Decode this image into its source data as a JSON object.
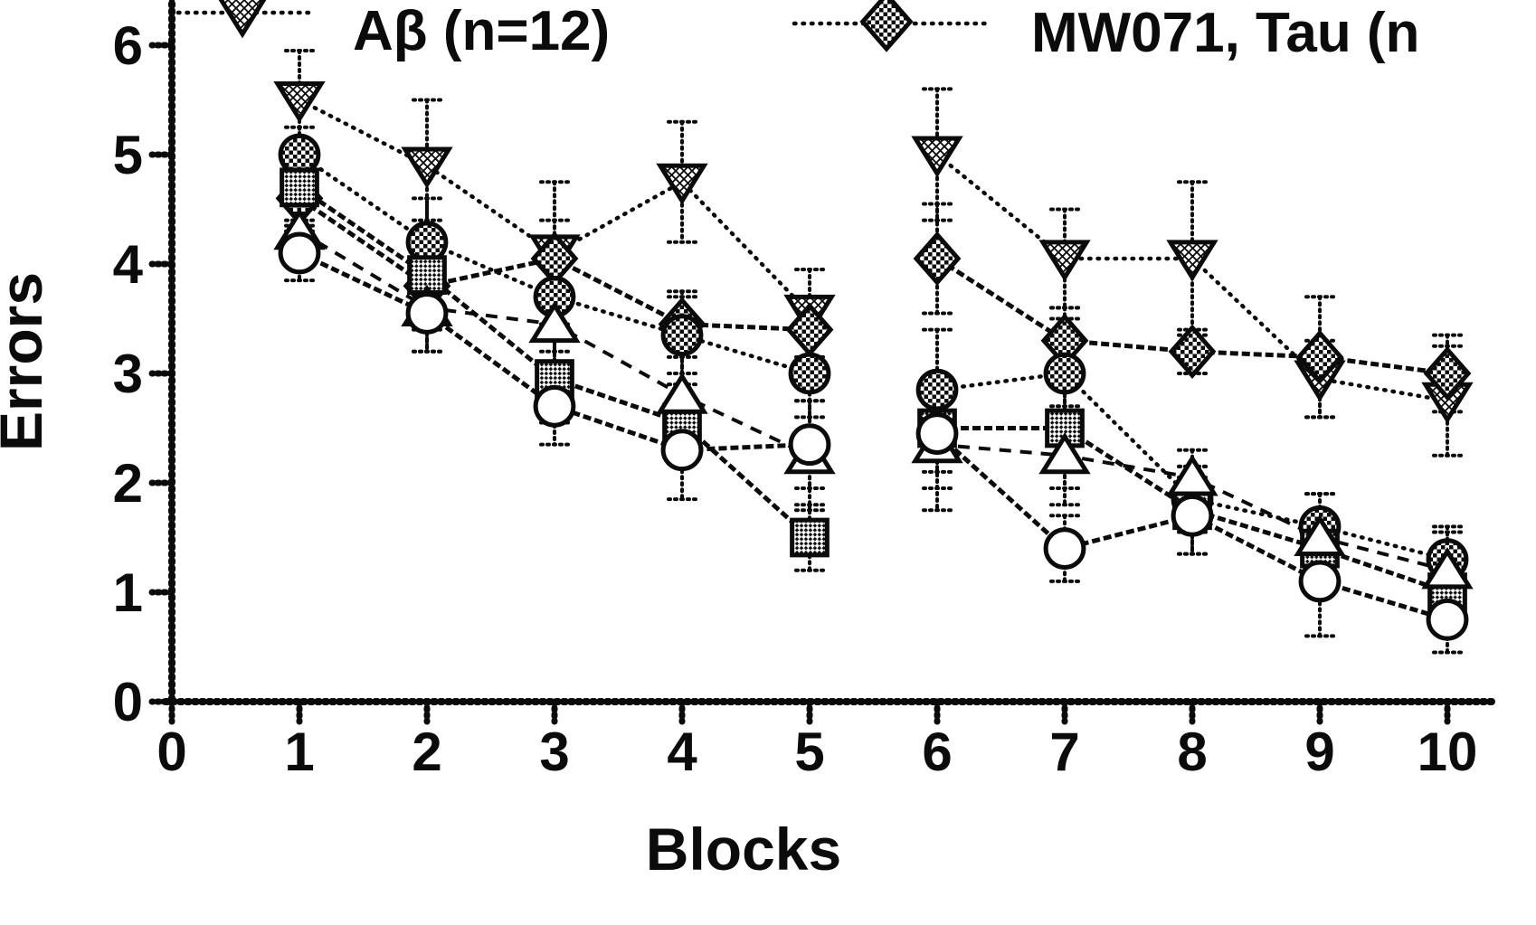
{
  "figure": {
    "background": "#ffffff",
    "ink": "#0b0b0b"
  },
  "legend": {
    "position": "top",
    "entries": [
      {
        "label": "Aβ (n=12)",
        "marker": "triangle-down",
        "fill": "crosshatch",
        "line": "dotted",
        "clipped": "top"
      },
      {
        "label": "MW071, Tau (n",
        "marker": "diamond",
        "fill": "checker",
        "line": "dotted",
        "clipped": "top-right"
      }
    ]
  },
  "chart_data": {
    "type": "line",
    "title": "",
    "xlabel": "Blocks",
    "ylabel": "Errors",
    "xlim": [
      0,
      10.3
    ],
    "ylim": [
      0,
      6.3
    ],
    "xticks": [
      0,
      1,
      2,
      3,
      4,
      5,
      6,
      7,
      8,
      9,
      10
    ],
    "yticks": [
      0,
      1,
      2,
      3,
      4,
      5,
      6
    ],
    "grid": false,
    "gap_between_blocks": [
      5,
      6
    ],
    "note": "Six groups, errors per training block; lines are broken between block 5 and block 6; error bars show s.e.m.",
    "series": [
      {
        "id": "abeta",
        "name": "Aβ (n=12)",
        "marker": "triangle-down",
        "fill": "crosshatch",
        "line": "dotted",
        "x": [
          1,
          2,
          3,
          4,
          5,
          6,
          7,
          8,
          9,
          10
        ],
        "y": [
          5.5,
          4.9,
          4.1,
          4.75,
          3.55,
          5.0,
          4.05,
          4.05,
          2.95,
          2.75
        ],
        "err": [
          0.45,
          0.6,
          0.65,
          0.55,
          0.4,
          0.6,
          0.45,
          0.7,
          0.35,
          0.5
        ]
      },
      {
        "id": "mw071-tau",
        "name": "MW071, Tau (n",
        "marker": "diamond",
        "fill": "checker",
        "line": "solid",
        "x": [
          1,
          2,
          3,
          4,
          5,
          6,
          7,
          8,
          9,
          10
        ],
        "y": [
          4.6,
          3.8,
          4.05,
          3.45,
          3.4,
          4.05,
          3.3,
          3.2,
          3.15,
          3.0
        ],
        "err": [
          0.3,
          0.3,
          0.35,
          0.3,
          0.3,
          0.5,
          0.3,
          0.2,
          0.55,
          0.35
        ]
      },
      {
        "id": "filled-circle",
        "name": "",
        "marker": "circle-filled",
        "fill": "checker",
        "line": "dotted",
        "x": [
          1,
          2,
          3,
          4,
          5,
          6,
          7,
          8,
          9,
          10
        ],
        "y": [
          5.0,
          4.2,
          3.7,
          3.35,
          3.0,
          2.85,
          3.0,
          1.85,
          1.6,
          1.3
        ],
        "err": [
          0.25,
          0.4,
          0.5,
          0.35,
          0.4,
          0.55,
          0.5,
          0.3,
          0.3,
          0.3
        ]
      },
      {
        "id": "hatched-square",
        "name": "",
        "marker": "square",
        "fill": "dots",
        "line": "solid",
        "x": [
          1,
          2,
          3,
          4,
          5,
          6,
          7,
          8,
          9,
          10
        ],
        "y": [
          4.7,
          3.9,
          2.95,
          2.55,
          1.5,
          2.5,
          2.5,
          1.75,
          1.4,
          1.0
        ],
        "err": [
          0.3,
          0.5,
          0.4,
          0.35,
          0.3,
          0.4,
          0.55,
          0.4,
          0.3,
          0.3
        ]
      },
      {
        "id": "open-triangle",
        "name": "",
        "marker": "triangle-up",
        "fill": "white",
        "line": "dashed",
        "x": [
          1,
          2,
          3,
          4,
          5,
          6,
          7,
          8,
          9,
          10
        ],
        "y": [
          4.3,
          3.6,
          3.45,
          2.8,
          2.25,
          2.35,
          2.25,
          2.05,
          1.5,
          1.2
        ],
        "err": [
          0.3,
          0.4,
          0.55,
          0.45,
          0.5,
          0.6,
          0.45,
          0.25,
          0.4,
          0.35
        ]
      },
      {
        "id": "open-circle",
        "name": "",
        "marker": "circle-open",
        "fill": "white",
        "line": "solid",
        "x": [
          1,
          2,
          3,
          4,
          5,
          6,
          7,
          8,
          9,
          10
        ],
        "y": [
          4.1,
          3.55,
          2.7,
          2.3,
          2.35,
          2.45,
          1.4,
          1.7,
          1.1,
          0.75
        ],
        "err": [
          0.25,
          0.35,
          0.35,
          0.45,
          0.4,
          0.5,
          0.3,
          0.35,
          0.5,
          0.3
        ]
      }
    ]
  }
}
